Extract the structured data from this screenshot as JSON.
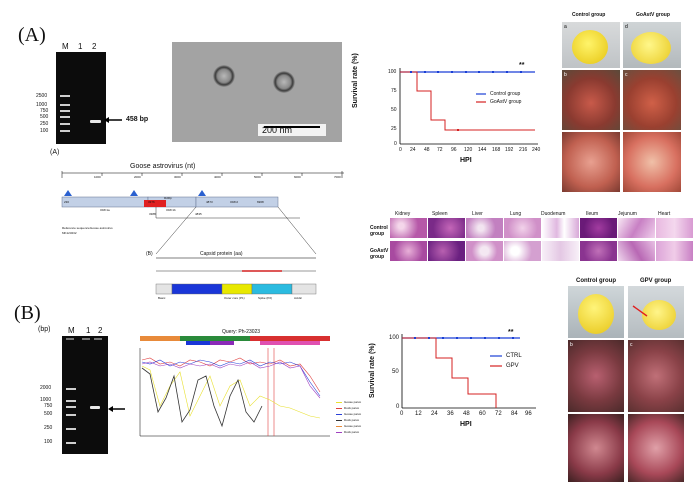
{
  "labels": {
    "panel_a": "(A)",
    "panel_b": "(B)",
    "sub_a": "(A)",
    "sub_b": "(B)"
  },
  "gel_a": {
    "lanes": [
      "M",
      "1",
      "2"
    ],
    "markers": [
      "2500",
      "1000",
      "750",
      "500",
      "250",
      "100"
    ],
    "band_label": "458 bp"
  },
  "em": {
    "scale": "200  nm"
  },
  "survival_a": {
    "ylabel": "Survival rate (%)",
    "xlabel": "HPI",
    "yticks": [
      "0",
      "25",
      "50",
      "75",
      "100"
    ],
    "xticks": [
      "0",
      "24",
      "48",
      "72",
      "96",
      "120",
      "144",
      "168",
      "192",
      "216",
      "240"
    ],
    "sig": "**",
    "legend": [
      "Control group",
      "GoAstV group"
    ]
  },
  "photos_a": {
    "col1": "Control group",
    "col2": "GoAstV group",
    "letters": [
      "a",
      "d",
      "b",
      "c"
    ]
  },
  "genome": {
    "title": "Goose astrovirus (nt)",
    "ruler": [
      "1000",
      "2000",
      "3000",
      "4000",
      "5000",
      "6000",
      "7000"
    ],
    "orf_labels": [
      "ORF1a",
      "RdRp",
      "ORF2",
      "ORF1b"
    ],
    "positions": [
      "230",
      "3376",
      "3388",
      "4835",
      "4873",
      "6968"
    ],
    "note1": "Reference sequence:",
    "note2": "Goose astrovirus",
    "note3": "MK123232",
    "capsid_title": "Capsid protein (aa)",
    "domains": [
      "Basic",
      "Inner core (C)",
      "Outer core (P1)",
      "Spike (P2)",
      "Acidic"
    ]
  },
  "histo": {
    "tissues": [
      "Kidney",
      "Spleen",
      "Liver",
      "Lung",
      "Duodenum",
      "Ileum",
      "Jejunum",
      "Heart"
    ],
    "rows": [
      "Control group",
      "GoAstV group"
    ]
  },
  "gel_b": {
    "unit": "(bp)",
    "lanes": [
      "M",
      "1",
      "2"
    ],
    "markers": [
      "2000",
      "1000",
      "750",
      "500",
      "250",
      "100"
    ]
  },
  "simplot": {
    "title": "Query: Ph-23023",
    "legend": [
      "Goose parvo",
      "Duck parvo",
      "Goose parvo",
      "Duck parvo",
      "Goose parvo",
      "Duck parvo"
    ]
  },
  "survival_b": {
    "ylabel": "Survival rate (%)",
    "xlabel": "HPI",
    "yticks": [
      "0",
      "50",
      "100"
    ],
    "xticks": [
      "0",
      "12",
      "24",
      "36",
      "48",
      "60",
      "72",
      "84",
      "96"
    ],
    "sig": "**",
    "legend": [
      "CTRL",
      "GPV"
    ]
  },
  "photos_b": {
    "col1": "Control group",
    "col2": "GPV group",
    "letters": [
      "b",
      "c"
    ]
  },
  "colors": {
    "control": "#1a3fd6",
    "infected": "#d42020",
    "spike": "#2bbbe0",
    "inner": "#1a36d8",
    "outer": "#e8e800"
  }
}
